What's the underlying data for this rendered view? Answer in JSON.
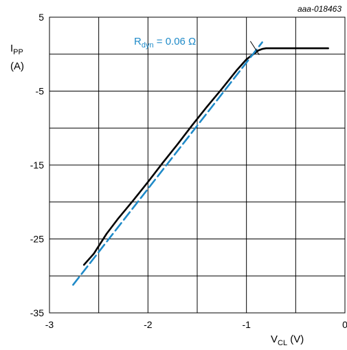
{
  "chart_data": {
    "type": "line",
    "reference_code": "aaa-018463",
    "xlabel": {
      "main": "V",
      "sub": "CL",
      "unit": " (V)"
    },
    "ylabel": {
      "main": "I",
      "sub": "PP",
      "unit": "(A)"
    },
    "xlim": [
      -3,
      0
    ],
    "ylim": [
      -35,
      5
    ],
    "x_ticks": [
      -3,
      -2,
      -1,
      0
    ],
    "x_tick_labels": [
      "-3",
      "-2",
      "-1",
      "0"
    ],
    "y_ticks": [
      5,
      -5,
      -15,
      -25,
      -35
    ],
    "y_tick_labels": [
      "5",
      "-5",
      "-15",
      "-25",
      "-35"
    ],
    "x_grid": [
      -3,
      -2.5,
      -2,
      -1.5,
      -1,
      -0.5,
      0
    ],
    "y_grid": [
      5,
      0,
      -5,
      -10,
      -15,
      -20,
      -25,
      -30,
      -35
    ],
    "grid": true,
    "series": [
      {
        "style": "solid",
        "color": "#000000",
        "x": [
          -2.65,
          -2.55,
          -2.42,
          -2.3,
          -2.15,
          -2.0,
          -1.85,
          -1.7,
          -1.55,
          -1.4,
          -1.25,
          -1.1,
          -1.0,
          -0.93,
          -0.88,
          -0.84,
          -0.8,
          -0.7,
          -0.5,
          -0.3,
          -0.17
        ],
        "y": [
          -28.5,
          -27.0,
          -24.3,
          -22.2,
          -19.8,
          -17.3,
          -14.7,
          -12.2,
          -9.6,
          -7.1,
          -4.7,
          -2.2,
          -0.7,
          0.0,
          0.5,
          0.7,
          0.8,
          0.8,
          0.8,
          0.8,
          0.8
        ]
      },
      {
        "style": "dashed",
        "color": "#1f8ac8",
        "x": [
          -2.76,
          -0.84
        ],
        "y": [
          -31.2,
          1.6
        ]
      }
    ],
    "annotation": {
      "main": "R",
      "sub": "dyn",
      "rest": " = 0.06 Ω",
      "color": "#1f8ac8",
      "leader_from": [
        -1.1,
        1.2
      ],
      "leader_to": [
        -0.87,
        -0.1
      ]
    }
  }
}
